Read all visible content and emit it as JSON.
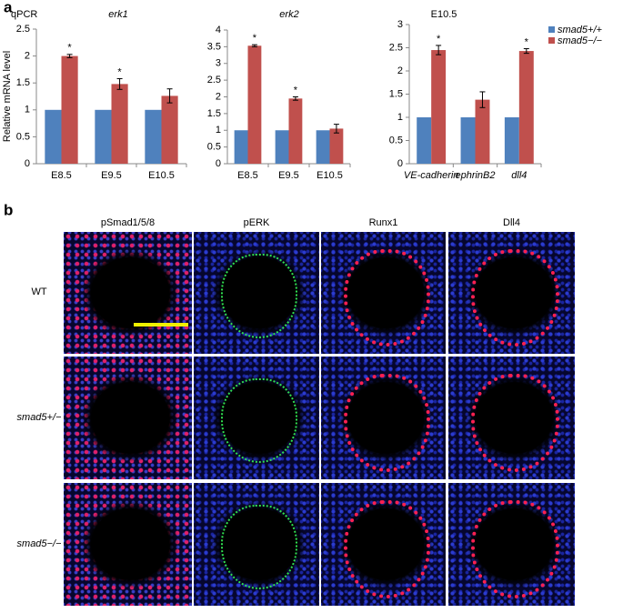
{
  "panel_labels": [
    "a",
    "b"
  ],
  "chart_data": [
    {
      "type": "bar",
      "annotation": "qPCR",
      "title": "erk1",
      "ylabel": "Relative mRNA level",
      "categories": [
        "E8.5",
        "E9.5",
        "E10.5"
      ],
      "series": [
        {
          "color": "#4f81bd",
          "values": [
            1,
            1,
            1
          ]
        },
        {
          "color": "#c0504d",
          "values": [
            2.0,
            1.48,
            1.26
          ],
          "errors": [
            0.03,
            0.1,
            0.13
          ]
        }
      ],
      "significance": [
        "*",
        "*",
        null
      ],
      "ylim": [
        0,
        2.5
      ],
      "yticks": [
        0,
        0.5,
        1,
        1.5,
        2,
        2.5
      ]
    },
    {
      "type": "bar",
      "title": "erk2",
      "categories": [
        "E8.5",
        "E9.5",
        "E10.5"
      ],
      "series": [
        {
          "color": "#4f81bd",
          "values": [
            1,
            1,
            1
          ]
        },
        {
          "color": "#c0504d",
          "values": [
            3.53,
            1.95,
            1.05
          ],
          "errors": [
            0.03,
            0.05,
            0.13
          ]
        }
      ],
      "significance": [
        "*",
        "*",
        null
      ],
      "ylim": [
        0,
        4
      ],
      "yticks": [
        0,
        0.5,
        1,
        1.5,
        2,
        2.5,
        3,
        3.5,
        4
      ]
    },
    {
      "type": "bar",
      "title": "E10.5",
      "categories": [
        "VE-cadherin",
        "ephrinB2",
        "dll4"
      ],
      "series": [
        {
          "name": "smad5+/+",
          "color": "#4f81bd",
          "values": [
            1,
            1,
            1
          ]
        },
        {
          "name": "smad5−/−",
          "color": "#c0504d",
          "values": [
            2.45,
            1.38,
            2.43
          ],
          "errors": [
            0.1,
            0.17,
            0.05
          ]
        }
      ],
      "significance": [
        "*",
        null,
        "*"
      ],
      "ylim": [
        0,
        3
      ],
      "yticks": [
        0,
        0.5,
        1,
        1.5,
        2,
        2.5,
        3
      ],
      "legend": "right"
    }
  ],
  "micrographs": {
    "columns": [
      "pSmad1/5/8",
      "pERK",
      "Runx1",
      "Dll4"
    ],
    "rows": [
      "WT",
      "smad5+/−",
      "smad5−/−"
    ]
  }
}
